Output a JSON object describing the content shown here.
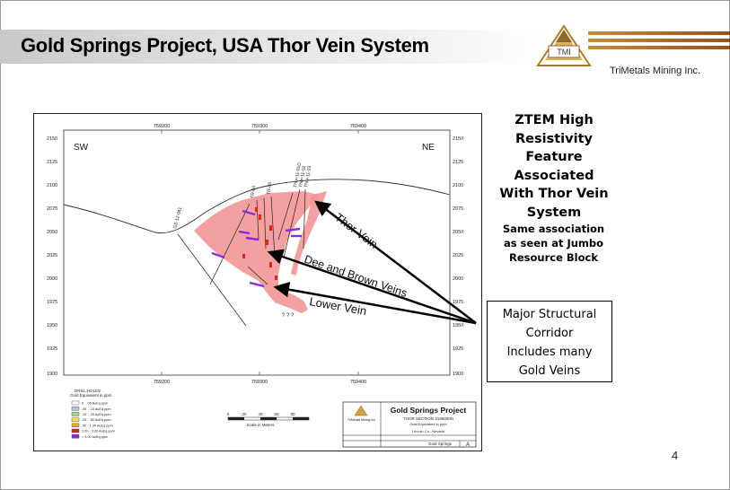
{
  "slide": {
    "title": "Gold Springs Project, USA Thor Vein System",
    "company": "TriMetals Mining Inc.",
    "logo_text": "TMI",
    "page_number": "4"
  },
  "right_panel": {
    "heading_lines": [
      "ZTEM High",
      "Resistivity",
      "Feature",
      "Associated",
      "With Thor Vein",
      "System"
    ],
    "sub_lines": [
      "Same association",
      "as seen at Jumbo",
      "Resource Block"
    ],
    "callout_lines": [
      "Major Structural",
      "Corridor",
      "Includes many",
      "Gold Veins"
    ]
  },
  "section": {
    "x_ticks": [
      "759200",
      "759300",
      "759400"
    ],
    "y_ticks": [
      "2150",
      "2125",
      "2100",
      "2075",
      "2050",
      "2025",
      "2000",
      "1975",
      "1950",
      "1925",
      "1900"
    ],
    "sw_label": "SW",
    "ne_label": "NE",
    "vein_labels": {
      "thor": "Thor Vein",
      "dee_brown": "Dee and Brown Veins",
      "lower": "Lower Vein"
    },
    "question_marks": "? ? ?",
    "drill_holes": [
      "GS-12-081",
      "Thor-11-01D",
      "Thor-11-02",
      "Thor-11-03",
      "TR-04",
      "TR-05"
    ],
    "legend": {
      "title_1": "DRILL HOLES",
      "title_2": "Gold Equivalent in ppm",
      "items": [
        {
          "label": "0 - .05 AuEq ppm",
          "color": "#ffffff"
        },
        {
          "label": ".05 - .10 AuEq ppm",
          "color": "#b0c4e8"
        },
        {
          "label": ".10 - .25 AuEq ppm",
          "color": "#a8d48a"
        },
        {
          "label": ".25 - .50 AuEq ppm",
          "color": "#f2e34a"
        },
        {
          "label": ".50 - 1.00 AuEq ppm",
          "color": "#f2a33a"
        },
        {
          "label": "1.00 - 3.00 AuEq ppm",
          "color": "#d42a1a"
        },
        {
          "label": "> 3.00 AuEq ppm",
          "color": "#8a2be2"
        }
      ]
    },
    "scale": {
      "ticks": [
        "0",
        "20",
        "40",
        "60",
        "80"
      ],
      "caption": "Scale in Meters"
    },
    "title_block": {
      "project": "Gold Springs Project",
      "section": "THOR SECTION 4188300N",
      "subtitle": "Gold Equivalent in ppm",
      "location": "Lincoln Co., Nevada",
      "company_small": "TriMetals Mining Inc.",
      "footer": "Gold Springs",
      "fig": "A"
    }
  },
  "colors": {
    "altered_zone": "#f08f8f",
    "high_grade": "#8a2be2",
    "red_assay": "#d42a1a",
    "logo_gold": "#c9a24a",
    "logo_bar": "#b06a2a"
  }
}
